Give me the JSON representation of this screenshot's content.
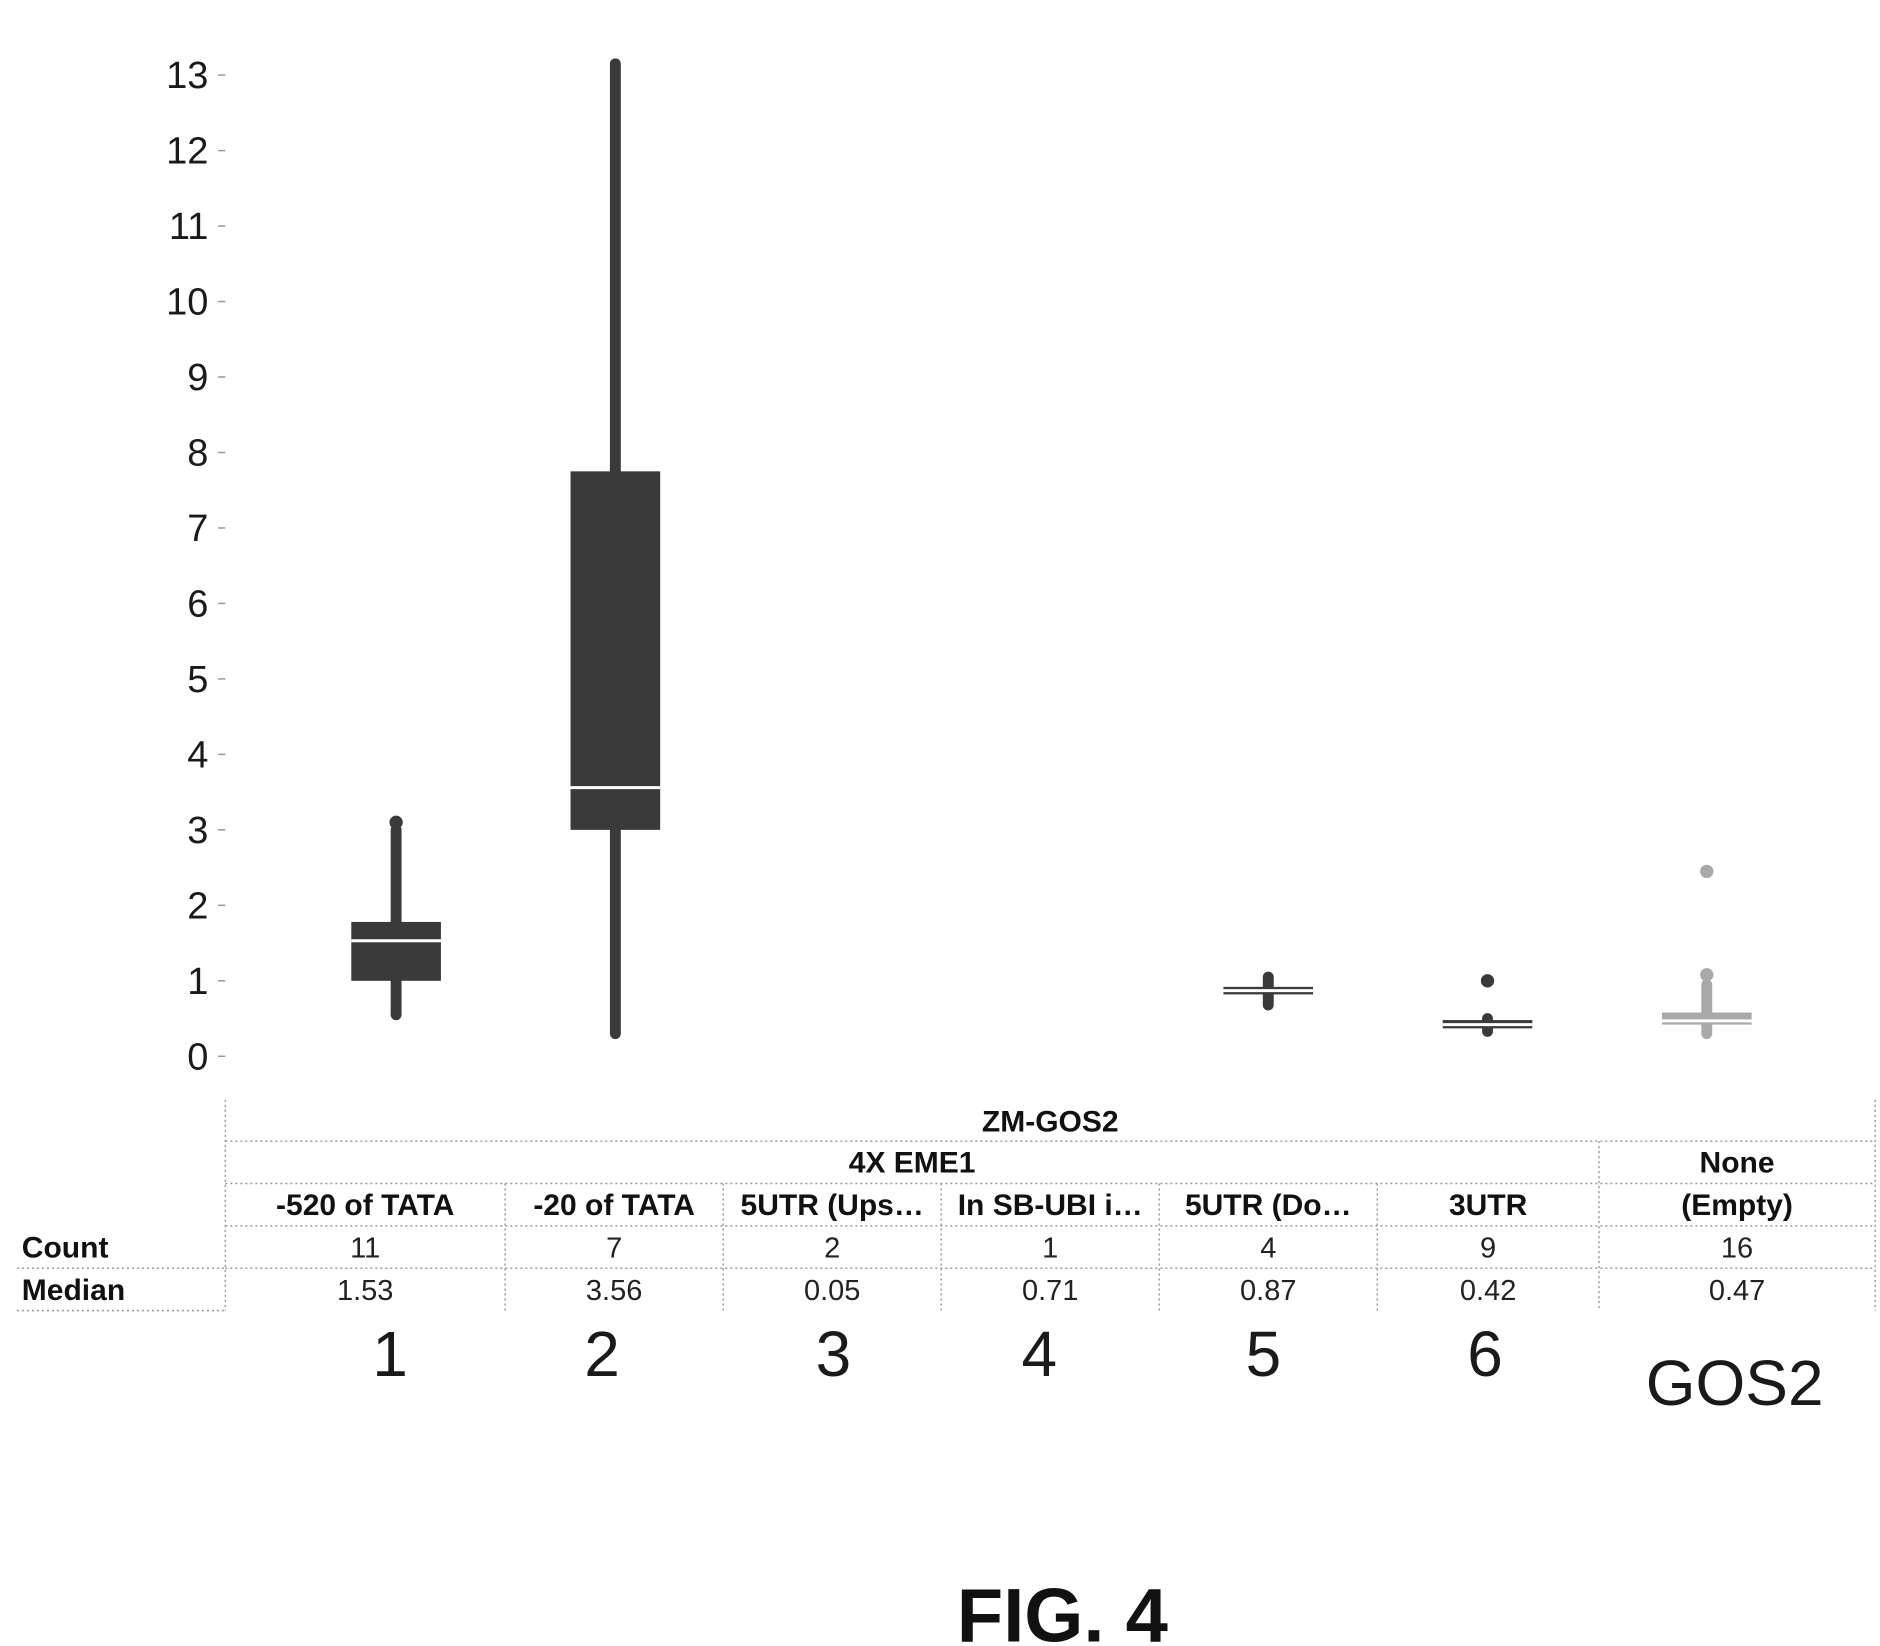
{
  "chart_data": {
    "type": "box",
    "y_ticks": [
      "0",
      "1",
      "2",
      "3",
      "4",
      "5",
      "6",
      "7",
      "8",
      "9",
      "10",
      "11",
      "12",
      "13"
    ],
    "ylim": [
      0,
      13
    ],
    "grid": false,
    "table_header": {
      "level1": "ZM-GOS2",
      "level2": [
        {
          "label": "4X EME1",
          "span": [
            0,
            5
          ]
        },
        {
          "label": "None",
          "span": [
            6,
            6
          ]
        }
      ]
    },
    "row_labels": {
      "count": "Count",
      "median": "Median"
    },
    "groups": [
      {
        "label": "-520 of TATA",
        "count": "11",
        "median": "1.53",
        "ordinal": "1",
        "color": "#3a3a3a",
        "box": {
          "whisker_low": 0.55,
          "q1": 1.0,
          "median": 1.53,
          "q3": 1.78,
          "whisker_high": 3.0
        },
        "outliers": [
          3.1
        ]
      },
      {
        "label": "-20 of TATA",
        "count": "7",
        "median": "3.56",
        "ordinal": "2",
        "color": "#3a3a3a",
        "box": {
          "whisker_low": 0.3,
          "q1": 3.0,
          "median": 3.56,
          "q3": 7.75,
          "whisker_high": 13.15
        },
        "outliers": []
      },
      {
        "label": "5UTR (Ups…",
        "count": "2",
        "median": "0.05",
        "ordinal": "3",
        "color": "#3a3a3a",
        "box": null,
        "outliers": []
      },
      {
        "label": "In  SB-UBI i…",
        "count": "1",
        "median": "0.71",
        "ordinal": "4",
        "color": "#3a3a3a",
        "box": null,
        "outliers": []
      },
      {
        "label": "5UTR (Do…",
        "count": "4",
        "median": "0.87",
        "ordinal": "5",
        "color": "#3a3a3a",
        "box": {
          "whisker_low": 0.68,
          "q1": 0.82,
          "median": 0.87,
          "q3": 0.92,
          "whisker_high": 1.05
        },
        "outliers": []
      },
      {
        "label": "3UTR",
        "count": "9",
        "median": "0.42",
        "ordinal": "6",
        "color": "#3a3a3a",
        "box": {
          "whisker_low": 0.33,
          "q1": 0.37,
          "median": 0.42,
          "q3": 0.48,
          "whisker_high": 0.5
        },
        "outliers": [
          1.0
        ]
      },
      {
        "label": "(Empty)",
        "count": "16",
        "median": "0.47",
        "ordinal": "GOS2",
        "color": "#a9a9a9",
        "box": {
          "whisker_low": 0.3,
          "q1": 0.42,
          "median": 0.47,
          "q3": 0.58,
          "whisker_high": 0.95
        },
        "outliers": [
          1.08,
          2.45
        ]
      }
    ],
    "figure_label": "FIG. 4"
  }
}
